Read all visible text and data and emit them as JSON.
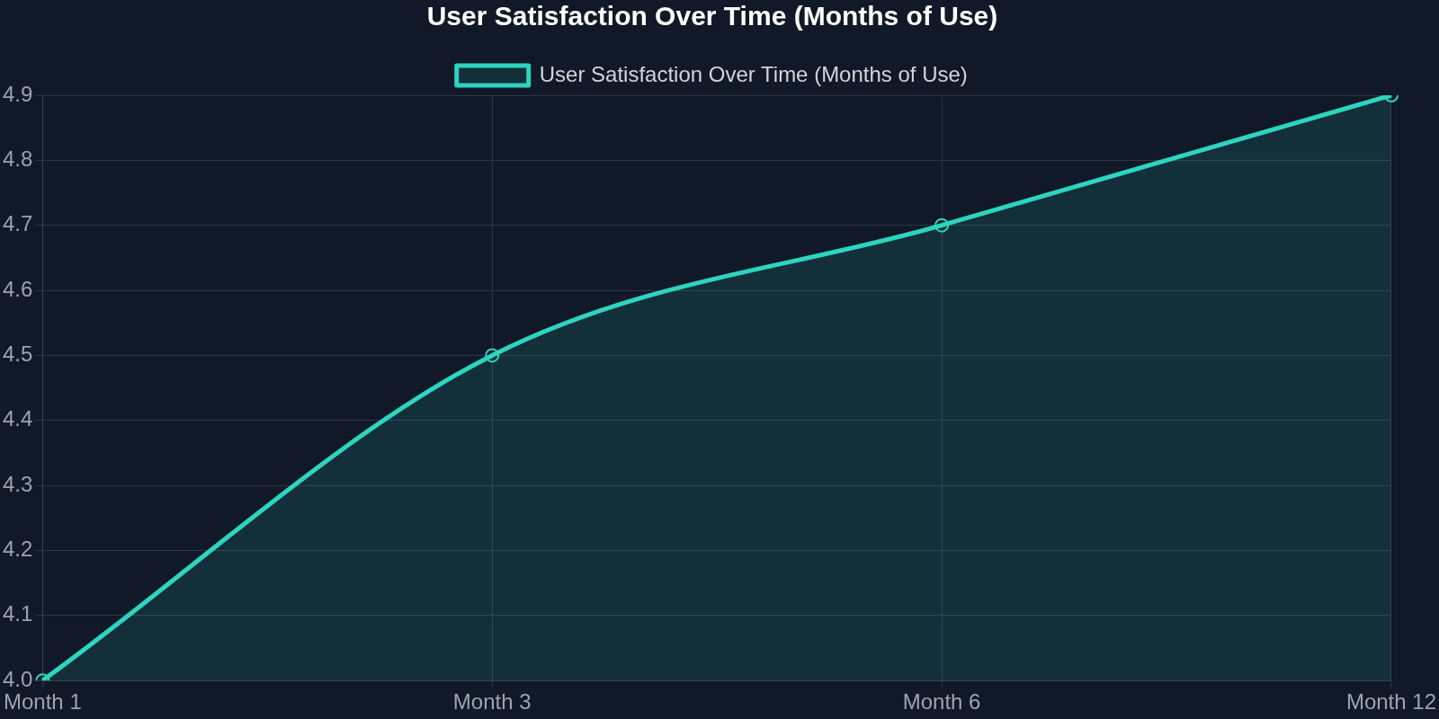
{
  "chart_data": {
    "type": "area",
    "title": "User Satisfaction Over Time (Months of Use)",
    "categories": [
      "Month 1",
      "Month 3",
      "Month 6",
      "Month 12"
    ],
    "series": [
      {
        "name": "User Satisfaction Over Time (Months of Use)",
        "color": "#2dd4bf",
        "values": [
          4.0,
          4.5,
          4.7,
          4.9
        ]
      }
    ],
    "ylim": [
      4.0,
      4.9
    ],
    "yticks": [
      {
        "value": 4.0,
        "label": "4.0"
      },
      4.1,
      4.2,
      4.3,
      4.4,
      4.5,
      4.6,
      4.7,
      4.8,
      4.9
    ],
    "grid": true,
    "legend": "top",
    "marker": "circle"
  }
}
